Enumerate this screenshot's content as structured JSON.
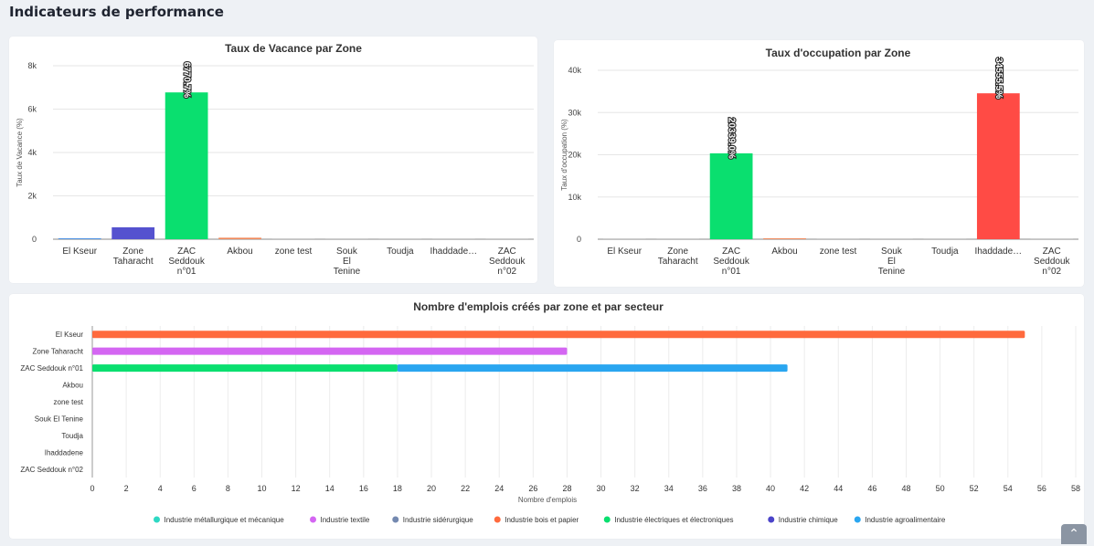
{
  "page": {
    "title": "Indicateurs de performance",
    "scroll_top_icon": "chevron-up-icon"
  },
  "chart_data": [
    {
      "type": "bar",
      "title": "Taux de Vacance par Zone",
      "xlabel": "",
      "ylabel": "Taux de Vacance (%)",
      "categories": [
        "El Kseur",
        "Zone Taharacht",
        "ZAC Seddouk n°01",
        "Akbou",
        "zone test",
        "Souk El Tenine",
        "Toudja",
        "Ihaddade…",
        "ZAC Seddouk n°02"
      ],
      "values": [
        0,
        550,
        6770.7,
        70,
        0,
        0,
        0,
        0,
        0
      ],
      "colors": [
        "#4a90e2",
        "#5552cf",
        "#0adf6f",
        "#f08a5d",
        "#cccccc",
        "#cccccc",
        "#cccccc",
        "#cccccc",
        "#cccccc"
      ],
      "data_labels": [
        "",
        "",
        "6770.7%",
        "",
        "",
        "",
        "",
        "",
        ""
      ],
      "ylim": [
        0,
        8000
      ],
      "yticks": [
        0,
        2000,
        4000,
        6000,
        8000
      ],
      "ytick_labels": [
        "0",
        "2k",
        "4k",
        "6k",
        "8k"
      ],
      "grid": true
    },
    {
      "type": "bar",
      "title": "Taux d'occupation par Zone",
      "xlabel": "",
      "ylabel": "Taux d'occupation (%)",
      "categories": [
        "El Kseur",
        "Zone Taharacht",
        "ZAC Seddouk n°01",
        "Akbou",
        "zone test",
        "Souk El Tenine",
        "Toudja",
        "Ihaddade…",
        "ZAC Seddouk n°02"
      ],
      "values": [
        0,
        0,
        20339.0,
        0,
        0,
        0,
        0,
        34555.5,
        0
      ],
      "colors": [
        "#cccccc",
        "#cccccc",
        "#0adf6f",
        "#f08a5d",
        "#cccccc",
        "#cccccc",
        "#cccccc",
        "#ff4b45",
        "#cccccc"
      ],
      "data_labels": [
        "",
        "",
        "20339.0%",
        "",
        "",
        "",
        "",
        "34555.5%",
        ""
      ],
      "ylim": [
        0,
        40000
      ],
      "yticks": [
        0,
        10000,
        20000,
        30000,
        40000
      ],
      "ytick_labels": [
        "0",
        "10k",
        "20k",
        "30k",
        "40k"
      ],
      "grid": true
    },
    {
      "type": "bar",
      "orientation": "horizontal",
      "stacked": true,
      "title": "Nombre d'emplois créés par zone et par secteur",
      "xlabel": "Nombre d'emplois",
      "ylabel": "",
      "categories": [
        "El Kseur",
        "Zone Taharacht",
        "ZAC Seddouk n°01",
        "Akbou",
        "zone test",
        "Souk El Tenine",
        "Toudja",
        "Ihaddadene",
        "ZAC Seddouk n°02"
      ],
      "series": [
        {
          "name": "Industrie métallurgique et mécanique",
          "color": "#2ed8c3",
          "values": [
            0,
            0,
            0,
            0,
            0,
            0,
            0,
            0,
            0
          ]
        },
        {
          "name": "Industrie textile",
          "color": "#d466f2",
          "values": [
            0,
            28,
            0,
            0,
            0,
            0,
            0,
            0,
            0
          ]
        },
        {
          "name": "Industrie sidérurgique",
          "color": "#7489b0",
          "values": [
            0,
            0,
            0,
            0,
            0,
            0,
            0,
            0,
            0
          ]
        },
        {
          "name": "Industrie bois et papier",
          "color": "#ff6a3d",
          "values": [
            55,
            0,
            0,
            0,
            0,
            0,
            0,
            0,
            0
          ]
        },
        {
          "name": "Industrie électriques et électroniques",
          "color": "#0adf6f",
          "values": [
            0,
            0,
            18,
            0,
            0,
            0,
            0,
            0,
            0
          ]
        },
        {
          "name": "Industrie chimique",
          "color": "#4b44c9",
          "values": [
            0,
            0,
            0,
            0,
            0,
            0,
            0,
            0,
            0
          ]
        },
        {
          "name": "Industrie agroalimentaire",
          "color": "#2aa6f0",
          "values": [
            0,
            0,
            23,
            0,
            0,
            0,
            0,
            0,
            0
          ]
        }
      ],
      "xlim": [
        0,
        58
      ],
      "xticks": [
        0,
        2,
        4,
        6,
        8,
        10,
        12,
        14,
        16,
        18,
        20,
        22,
        24,
        26,
        28,
        30,
        32,
        34,
        36,
        38,
        40,
        42,
        44,
        46,
        48,
        50,
        52,
        54,
        56,
        58
      ],
      "legend_position": "bottom",
      "grid": true
    }
  ]
}
